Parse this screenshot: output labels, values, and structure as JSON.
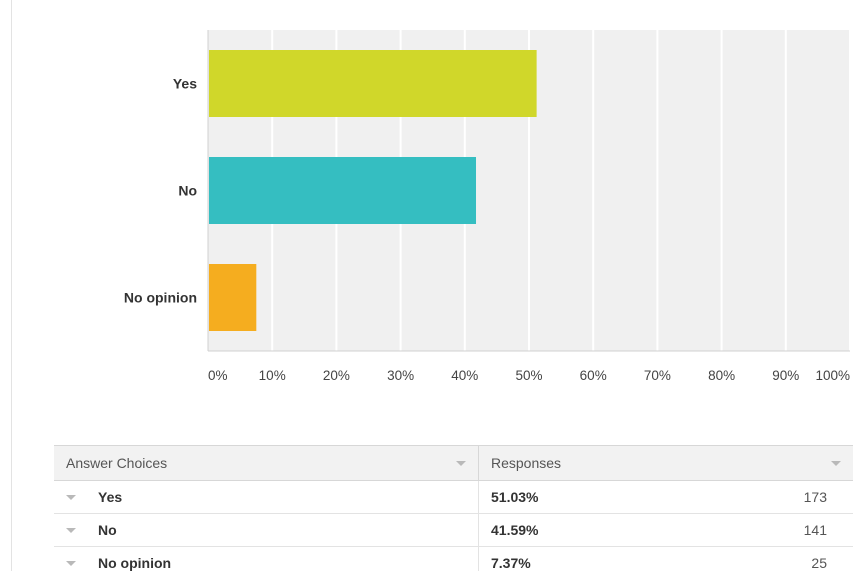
{
  "chart_data": {
    "type": "bar",
    "orientation": "horizontal",
    "categories": [
      "Yes",
      "No",
      "No opinion"
    ],
    "values": [
      51.03,
      41.59,
      7.37
    ],
    "colors": [
      "#d0d72a",
      "#35bec1",
      "#f5ad1f"
    ],
    "xlim": [
      0,
      100
    ],
    "xticks": [
      "0%",
      "10%",
      "20%",
      "30%",
      "40%",
      "50%",
      "60%",
      "70%",
      "80%",
      "90%",
      "100%"
    ],
    "grid": true,
    "plot_background": "#f0f0f0",
    "gridline_color": "#ffffff"
  },
  "table": {
    "headers": {
      "choices": "Answer Choices",
      "responses": "Responses"
    },
    "rows": [
      {
        "choice": "Yes",
        "percent": "51.03%",
        "count": "173"
      },
      {
        "choice": "No",
        "percent": "41.59%",
        "count": "141"
      },
      {
        "choice": "No opinion",
        "percent": "7.37%",
        "count": "25"
      }
    ]
  }
}
